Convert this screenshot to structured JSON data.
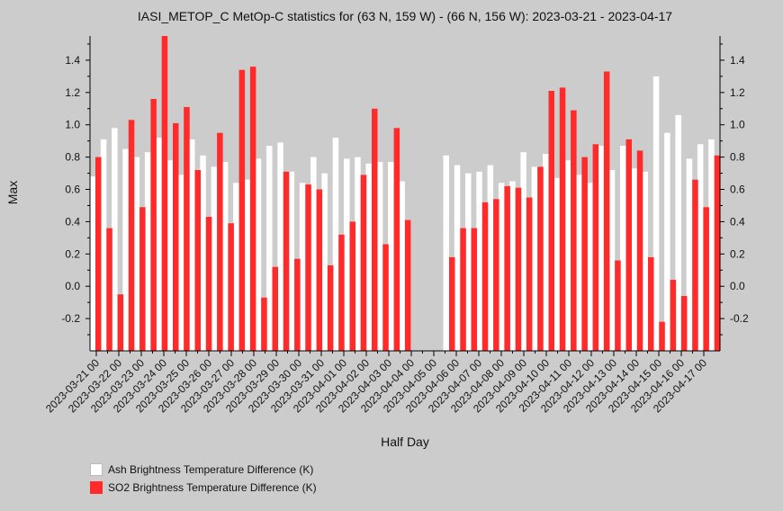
{
  "chart_data": {
    "type": "bar",
    "title": "IASI_METOP_C MetOp-C statistics for (63 N, 159 W) - (66 N, 156 W): 2023-03-21 - 2023-04-17",
    "xlabel": "Half Day",
    "ylabel": "Max",
    "ylim": [
      -0.4,
      1.55
    ],
    "yticks": [
      "-0.2",
      "0.0",
      "0.2",
      "0.4",
      "0.6",
      "0.8",
      "1.0",
      "1.2",
      "1.4"
    ],
    "grid": false,
    "legend_position": "bottom-left",
    "x_tick_labels": [
      "2023-03-21 00",
      "2023-03-22 00",
      "2023-03-23 00",
      "2023-03-24 00",
      "2023-03-25 00",
      "2023-03-26 00",
      "2023-03-27 00",
      "2023-03-28 00",
      "2023-03-29 00",
      "2023-03-30 00",
      "2023-03-31 00",
      "2023-04-01 00",
      "2023-04-02 00",
      "2023-04-03 00",
      "2023-04-04 00",
      "2023-04-05 00",
      "2023-04-06 00",
      "2023-04-07 00",
      "2023-04-08 00",
      "2023-04-09 00",
      "2023-04-10 00",
      "2023-04-11 00",
      "2023-04-12 00",
      "2023-04-13 00",
      "2023-04-14 00",
      "2023-04-15 00",
      "2023-04-16 00",
      "2023-04-17 00"
    ],
    "series": [
      {
        "name": "Ash Brightness Temperature Difference (K)",
        "color": "#ffffff",
        "values": [
          0.68,
          0.91,
          0.98,
          0.85,
          0.8,
          0.83,
          0.92,
          0.78,
          0.69,
          0.91,
          0.81,
          0.74,
          0.77,
          0.64,
          0.66,
          0.79,
          0.87,
          0.89,
          0.71,
          0.64,
          0.8,
          0.7,
          0.92,
          0.79,
          0.8,
          0.76,
          0.77,
          0.77,
          0.65,
          null,
          null,
          null,
          0.81,
          0.75,
          0.7,
          0.71,
          0.75,
          0.64,
          0.65,
          0.83,
          0.74,
          0.82,
          0.67,
          0.78,
          0.69,
          0.64,
          0.87,
          0.72,
          0.87,
          0.73,
          0.71,
          1.3,
          0.95,
          1.06,
          0.79,
          0.88,
          0.91
        ]
      },
      {
        "name": "SO2 Brightness Temperature Difference (K)",
        "color": "#ff2a2a",
        "values": [
          0.8,
          0.36,
          -0.05,
          1.03,
          0.49,
          1.16,
          1.55,
          1.01,
          1.11,
          0.72,
          0.43,
          0.95,
          0.39,
          1.34,
          1.36,
          -0.07,
          0.12,
          0.71,
          0.17,
          0.63,
          0.6,
          0.13,
          0.32,
          0.4,
          0.69,
          1.1,
          0.26,
          0.98,
          0.41,
          null,
          null,
          null,
          0.18,
          0.36,
          0.36,
          0.52,
          0.54,
          0.62,
          0.61,
          0.55,
          0.74,
          1.21,
          1.23,
          1.09,
          0.8,
          0.88,
          1.33,
          0.16,
          0.91,
          0.84,
          0.18,
          -0.22,
          0.04,
          -0.06,
          0.66,
          0.49,
          0.81
        ]
      }
    ]
  }
}
